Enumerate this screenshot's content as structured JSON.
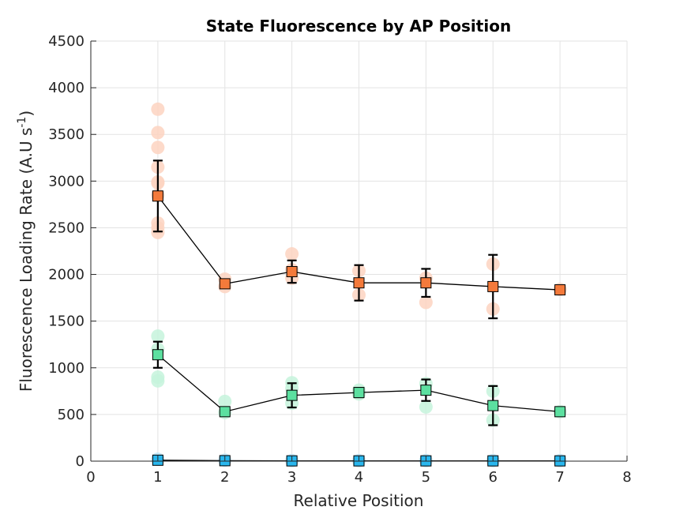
{
  "chart_data": {
    "type": "scatter",
    "title": "State Fluorescence by AP Position",
    "xlabel": "Relative Position",
    "ylabel_main": "Fluorescence Loading Rate (A.U s",
    "ylabel_sup": "-1",
    "ylabel_close": ")",
    "xlim": [
      0,
      8
    ],
    "ylim": [
      0,
      4500
    ],
    "xticks": [
      0,
      1,
      2,
      3,
      4,
      5,
      6,
      7,
      8
    ],
    "yticks": [
      0,
      500,
      1000,
      1500,
      2000,
      2500,
      3000,
      3500,
      4000,
      4500
    ],
    "grid": true,
    "series": [
      {
        "color": "#F47A3B",
        "raw_color": "#FDD4C1",
        "x": [
          1,
          2,
          3,
          4,
          5,
          6,
          7
        ],
        "y": [
          2840,
          1900,
          2030,
          1910,
          1910,
          1870,
          1835
        ],
        "err": [
          380,
          30,
          120,
          190,
          150,
          340,
          20
        ],
        "raw": [
          [
            1,
            3770
          ],
          [
            1,
            3520
          ],
          [
            1,
            3360
          ],
          [
            1,
            3150
          ],
          [
            1,
            2990
          ],
          [
            1,
            2980
          ],
          [
            1,
            2850
          ],
          [
            1,
            2550
          ],
          [
            1,
            2500
          ],
          [
            1,
            2450
          ],
          [
            2,
            1950
          ],
          [
            2,
            1870
          ],
          [
            3,
            2220
          ],
          [
            3,
            2050
          ],
          [
            3,
            1960
          ],
          [
            4,
            2040
          ],
          [
            4,
            1780
          ],
          [
            5,
            1960
          ],
          [
            5,
            1700
          ],
          [
            6,
            2110
          ],
          [
            6,
            1630
          ],
          [
            7,
            1840
          ]
        ]
      },
      {
        "color": "#5CE0A0",
        "raw_color": "#C6F3DC",
        "x": [
          1,
          2,
          3,
          4,
          5,
          6,
          7
        ],
        "y": [
          1140,
          530,
          705,
          735,
          760,
          595,
          530
        ],
        "err": [
          140,
          20,
          130,
          50,
          115,
          210,
          20
        ],
        "raw": [
          [
            1,
            1340
          ],
          [
            1,
            1200
          ],
          [
            1,
            900
          ],
          [
            1,
            860
          ],
          [
            2,
            640
          ],
          [
            2,
            520
          ],
          [
            3,
            840
          ],
          [
            3,
            780
          ],
          [
            3,
            620
          ],
          [
            4,
            760
          ],
          [
            4,
            720
          ],
          [
            5,
            830
          ],
          [
            5,
            580
          ],
          [
            6,
            750
          ],
          [
            6,
            440
          ],
          [
            7,
            530
          ]
        ]
      },
      {
        "color": "#29B7EE",
        "raw_color": "#BDE8FA",
        "x": [
          1,
          2,
          3,
          4,
          5,
          6,
          7
        ],
        "y": [
          10,
          5,
          3,
          3,
          3,
          3,
          3
        ],
        "err": [
          5,
          2,
          1,
          1,
          1,
          1,
          1
        ],
        "raw": [
          [
            1,
            20
          ],
          [
            2,
            10
          ],
          [
            3,
            5
          ],
          [
            4,
            5
          ],
          [
            5,
            5
          ],
          [
            6,
            5
          ],
          [
            7,
            5
          ]
        ]
      }
    ]
  }
}
